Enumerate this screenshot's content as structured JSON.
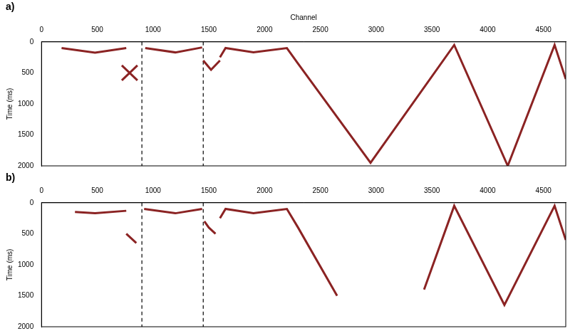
{
  "chart_data": [
    {
      "type": "line",
      "title": "a)",
      "x_label": "Channel",
      "y_label": "Time (ms)",
      "xlim": [
        0,
        4700
      ],
      "xticks": [
        0,
        500,
        1000,
        1500,
        2000,
        2500,
        3000,
        3500,
        4000,
        4500
      ],
      "ylim": [
        2000,
        0
      ],
      "yticks": [
        0,
        500,
        1000,
        1500,
        2000
      ],
      "grid": false,
      "series": [
        {
          "color": "#8b2323",
          "x": [
            180,
            480,
            760
          ],
          "values": [
            100,
            175,
            100
          ]
        },
        {
          "color": "#8b2323",
          "x": [
            720,
            860
          ],
          "values": [
            380,
            620
          ]
        },
        {
          "color": "#8b2323",
          "x": [
            720,
            860
          ],
          "values": [
            620,
            380
          ]
        },
        {
          "color": "#8b2323",
          "x": [
            930,
            1200,
            1440
          ],
          "values": [
            100,
            170,
            90
          ]
        },
        {
          "color": "#8b2323",
          "x": [
            1450,
            1520,
            1600
          ],
          "values": [
            300,
            450,
            300
          ]
        },
        {
          "color": "#8b2323",
          "x": [
            1600,
            1650,
            1900,
            2200,
            2300,
            2950,
            3700,
            4180,
            4600,
            4700
          ],
          "values": [
            250,
            100,
            170,
            100,
            350,
            1950,
            50,
            2000,
            50,
            600
          ]
        },
        {
          "color": "#000000",
          "line_style": "dashed",
          "x": [
            900,
            900
          ],
          "values": [
            0,
            2000
          ]
        },
        {
          "color": "#000000",
          "line_style": "dashed",
          "x": [
            1450,
            1450
          ],
          "values": [
            0,
            2000
          ]
        }
      ]
    },
    {
      "type": "line",
      "title": "b)",
      "y_label": "Time (ms)",
      "xlim": [
        0,
        4700
      ],
      "xticks": [
        0,
        500,
        1000,
        1500,
        2000,
        2500,
        3000,
        3500,
        4000,
        4500
      ],
      "ylim": [
        2000,
        0
      ],
      "yticks": [
        0,
        500,
        1000,
        1500,
        2000
      ],
      "grid": false,
      "series": [
        {
          "color": "#8b2323",
          "x": [
            300,
            480,
            760
          ],
          "values": [
            150,
            170,
            130
          ]
        },
        {
          "color": "#8b2323",
          "x": [
            760,
            850
          ],
          "values": [
            500,
            650
          ]
        },
        {
          "color": "#8b2323",
          "x": [
            920,
            1200,
            1440
          ],
          "values": [
            100,
            170,
            100
          ]
        },
        {
          "color": "#8b2323",
          "x": [
            1460,
            1500,
            1560
          ],
          "values": [
            300,
            400,
            500
          ]
        },
        {
          "color": "#8b2323",
          "x": [
            1600,
            1650,
            1900,
            2200,
            2300,
            2650
          ],
          "values": [
            250,
            100,
            170,
            100,
            400,
            1500
          ]
        },
        {
          "color": "#8b2323",
          "x": [
            3430,
            3700,
            4150,
            4600,
            4700
          ],
          "values": [
            1400,
            50,
            1650,
            50,
            600
          ]
        },
        {
          "color": "#000000",
          "line_style": "dashed",
          "x": [
            900,
            900
          ],
          "values": [
            0,
            2000
          ]
        },
        {
          "color": "#000000",
          "line_style": "dashed",
          "x": [
            1450,
            1450
          ],
          "values": [
            0,
            2000
          ]
        }
      ]
    }
  ]
}
